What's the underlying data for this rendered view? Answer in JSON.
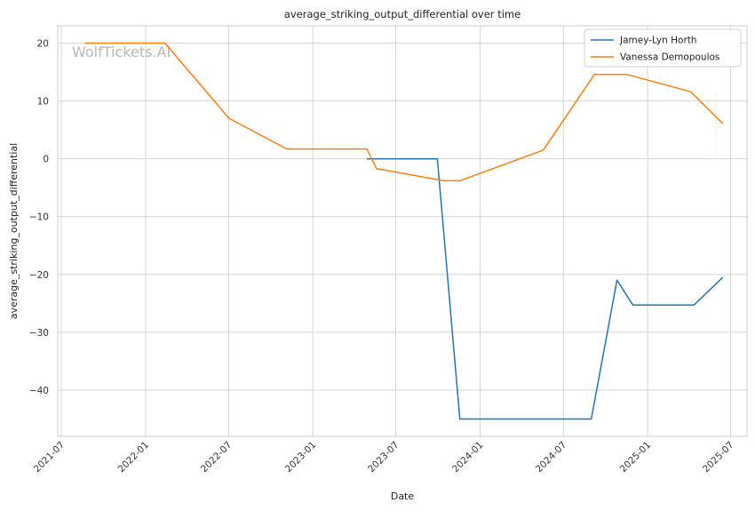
{
  "chart_data": {
    "type": "line",
    "title": "average_striking_output_differential over time",
    "xlabel": "Date",
    "ylabel": "average_striking_output_differential",
    "watermark": "WolfTickets.AI",
    "x_ticks": [
      "2021-07",
      "2022-01",
      "2022-07",
      "2023-01",
      "2023-07",
      "2024-01",
      "2024-07",
      "2025-01",
      "2025-07"
    ],
    "y_ticks": [
      20,
      10,
      0,
      -10,
      -20,
      -30,
      -40
    ],
    "xlim": [
      "2021-06-23",
      "2025-08-06"
    ],
    "ylim": [
      -48.0,
      23.0
    ],
    "grid": true,
    "legend_position": "top-right",
    "series": [
      {
        "name": "Jamey-Lyn Horth",
        "color": "#1f77b4",
        "points": [
          {
            "x": "2023-04-29",
            "y": 0.0
          },
          {
            "x": "2023-09-30",
            "y": 0.0
          },
          {
            "x": "2023-11-18",
            "y": -45.0
          },
          {
            "x": "2024-08-31",
            "y": -45.0
          },
          {
            "x": "2024-10-26",
            "y": -21.0
          },
          {
            "x": "2024-11-30",
            "y": -25.3
          },
          {
            "x": "2025-04-12",
            "y": -25.3
          },
          {
            "x": "2025-06-14",
            "y": -20.5
          }
        ]
      },
      {
        "name": "Vanessa Demopoulos",
        "color": "#ff7f0e",
        "points": [
          {
            "x": "2021-08-21",
            "y": 20.0
          },
          {
            "x": "2022-02-12",
            "y": 20.0
          },
          {
            "x": "2022-07-02",
            "y": 7.0
          },
          {
            "x": "2022-11-05",
            "y": 1.7
          },
          {
            "x": "2023-04-29",
            "y": 1.7
          },
          {
            "x": "2023-05-20",
            "y": -1.7
          },
          {
            "x": "2023-10-14",
            "y": -3.8
          },
          {
            "x": "2023-11-18",
            "y": -3.8
          },
          {
            "x": "2024-05-18",
            "y": 1.5
          },
          {
            "x": "2024-09-07",
            "y": 14.6
          },
          {
            "x": "2024-11-16",
            "y": 14.6
          },
          {
            "x": "2025-04-05",
            "y": 11.6
          },
          {
            "x": "2025-06-14",
            "y": 6.1
          }
        ]
      }
    ]
  }
}
